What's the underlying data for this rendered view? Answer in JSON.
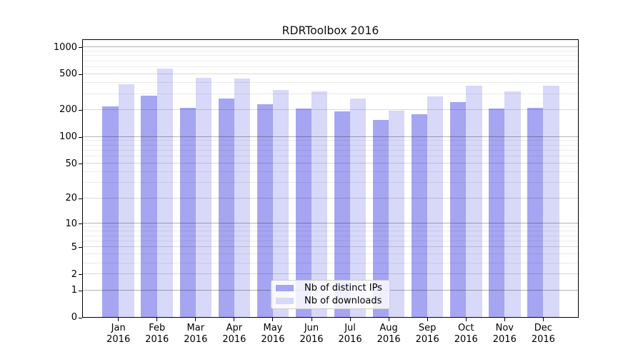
{
  "title": "RDRToolbox 2016",
  "chart_data": {
    "type": "bar",
    "title": "RDRToolbox 2016",
    "categories": [
      "Jan",
      "Feb",
      "Mar",
      "Apr",
      "May",
      "Jun",
      "Jul",
      "Aug",
      "Sep",
      "Oct",
      "Nov",
      "Dec"
    ],
    "x_tick_second_line": "2016",
    "series": [
      {
        "name": "Nb of distinct IPs",
        "color": "#a5a5f2",
        "values": [
          217,
          286,
          209,
          264,
          231,
          207,
          190,
          153,
          176,
          244,
          204,
          209
        ]
      },
      {
        "name": "Nb of downloads",
        "color": "#d8d8f9",
        "values": [
          383,
          573,
          452,
          441,
          333,
          319,
          266,
          195,
          282,
          371,
          317,
          371
        ]
      }
    ],
    "y_axis": {
      "scale": "log1p",
      "ylim": [
        0,
        1235
      ],
      "ticks": [
        {
          "v": 1000,
          "label": "1000"
        },
        {
          "v": 500,
          "label": "500"
        },
        {
          "v": 200,
          "label": "200"
        },
        {
          "v": 100,
          "label": "100"
        },
        {
          "v": 50,
          "label": "50"
        },
        {
          "v": 20,
          "label": "20"
        },
        {
          "v": 10,
          "label": "10"
        },
        {
          "v": 5,
          "label": "5"
        },
        {
          "v": 2,
          "label": "2"
        },
        {
          "v": 1,
          "label": "1"
        },
        {
          "v": 0,
          "label": "0"
        }
      ]
    },
    "gridlines": {
      "strong": [
        1,
        10,
        100,
        1000
      ],
      "mid": [
        2,
        5,
        20,
        50,
        200,
        500
      ],
      "faint": [
        3,
        4,
        6,
        7,
        8,
        9,
        30,
        40,
        60,
        70,
        80,
        90,
        300,
        400,
        600,
        700,
        800,
        900
      ]
    },
    "legend": {
      "position": "lower center"
    },
    "colors": {
      "grid_strong": "#b4b4b4",
      "grid_mid": "#d9d9d9",
      "grid_faint": "#ececec",
      "axis": "#000000",
      "background": "#ffffff"
    }
  }
}
